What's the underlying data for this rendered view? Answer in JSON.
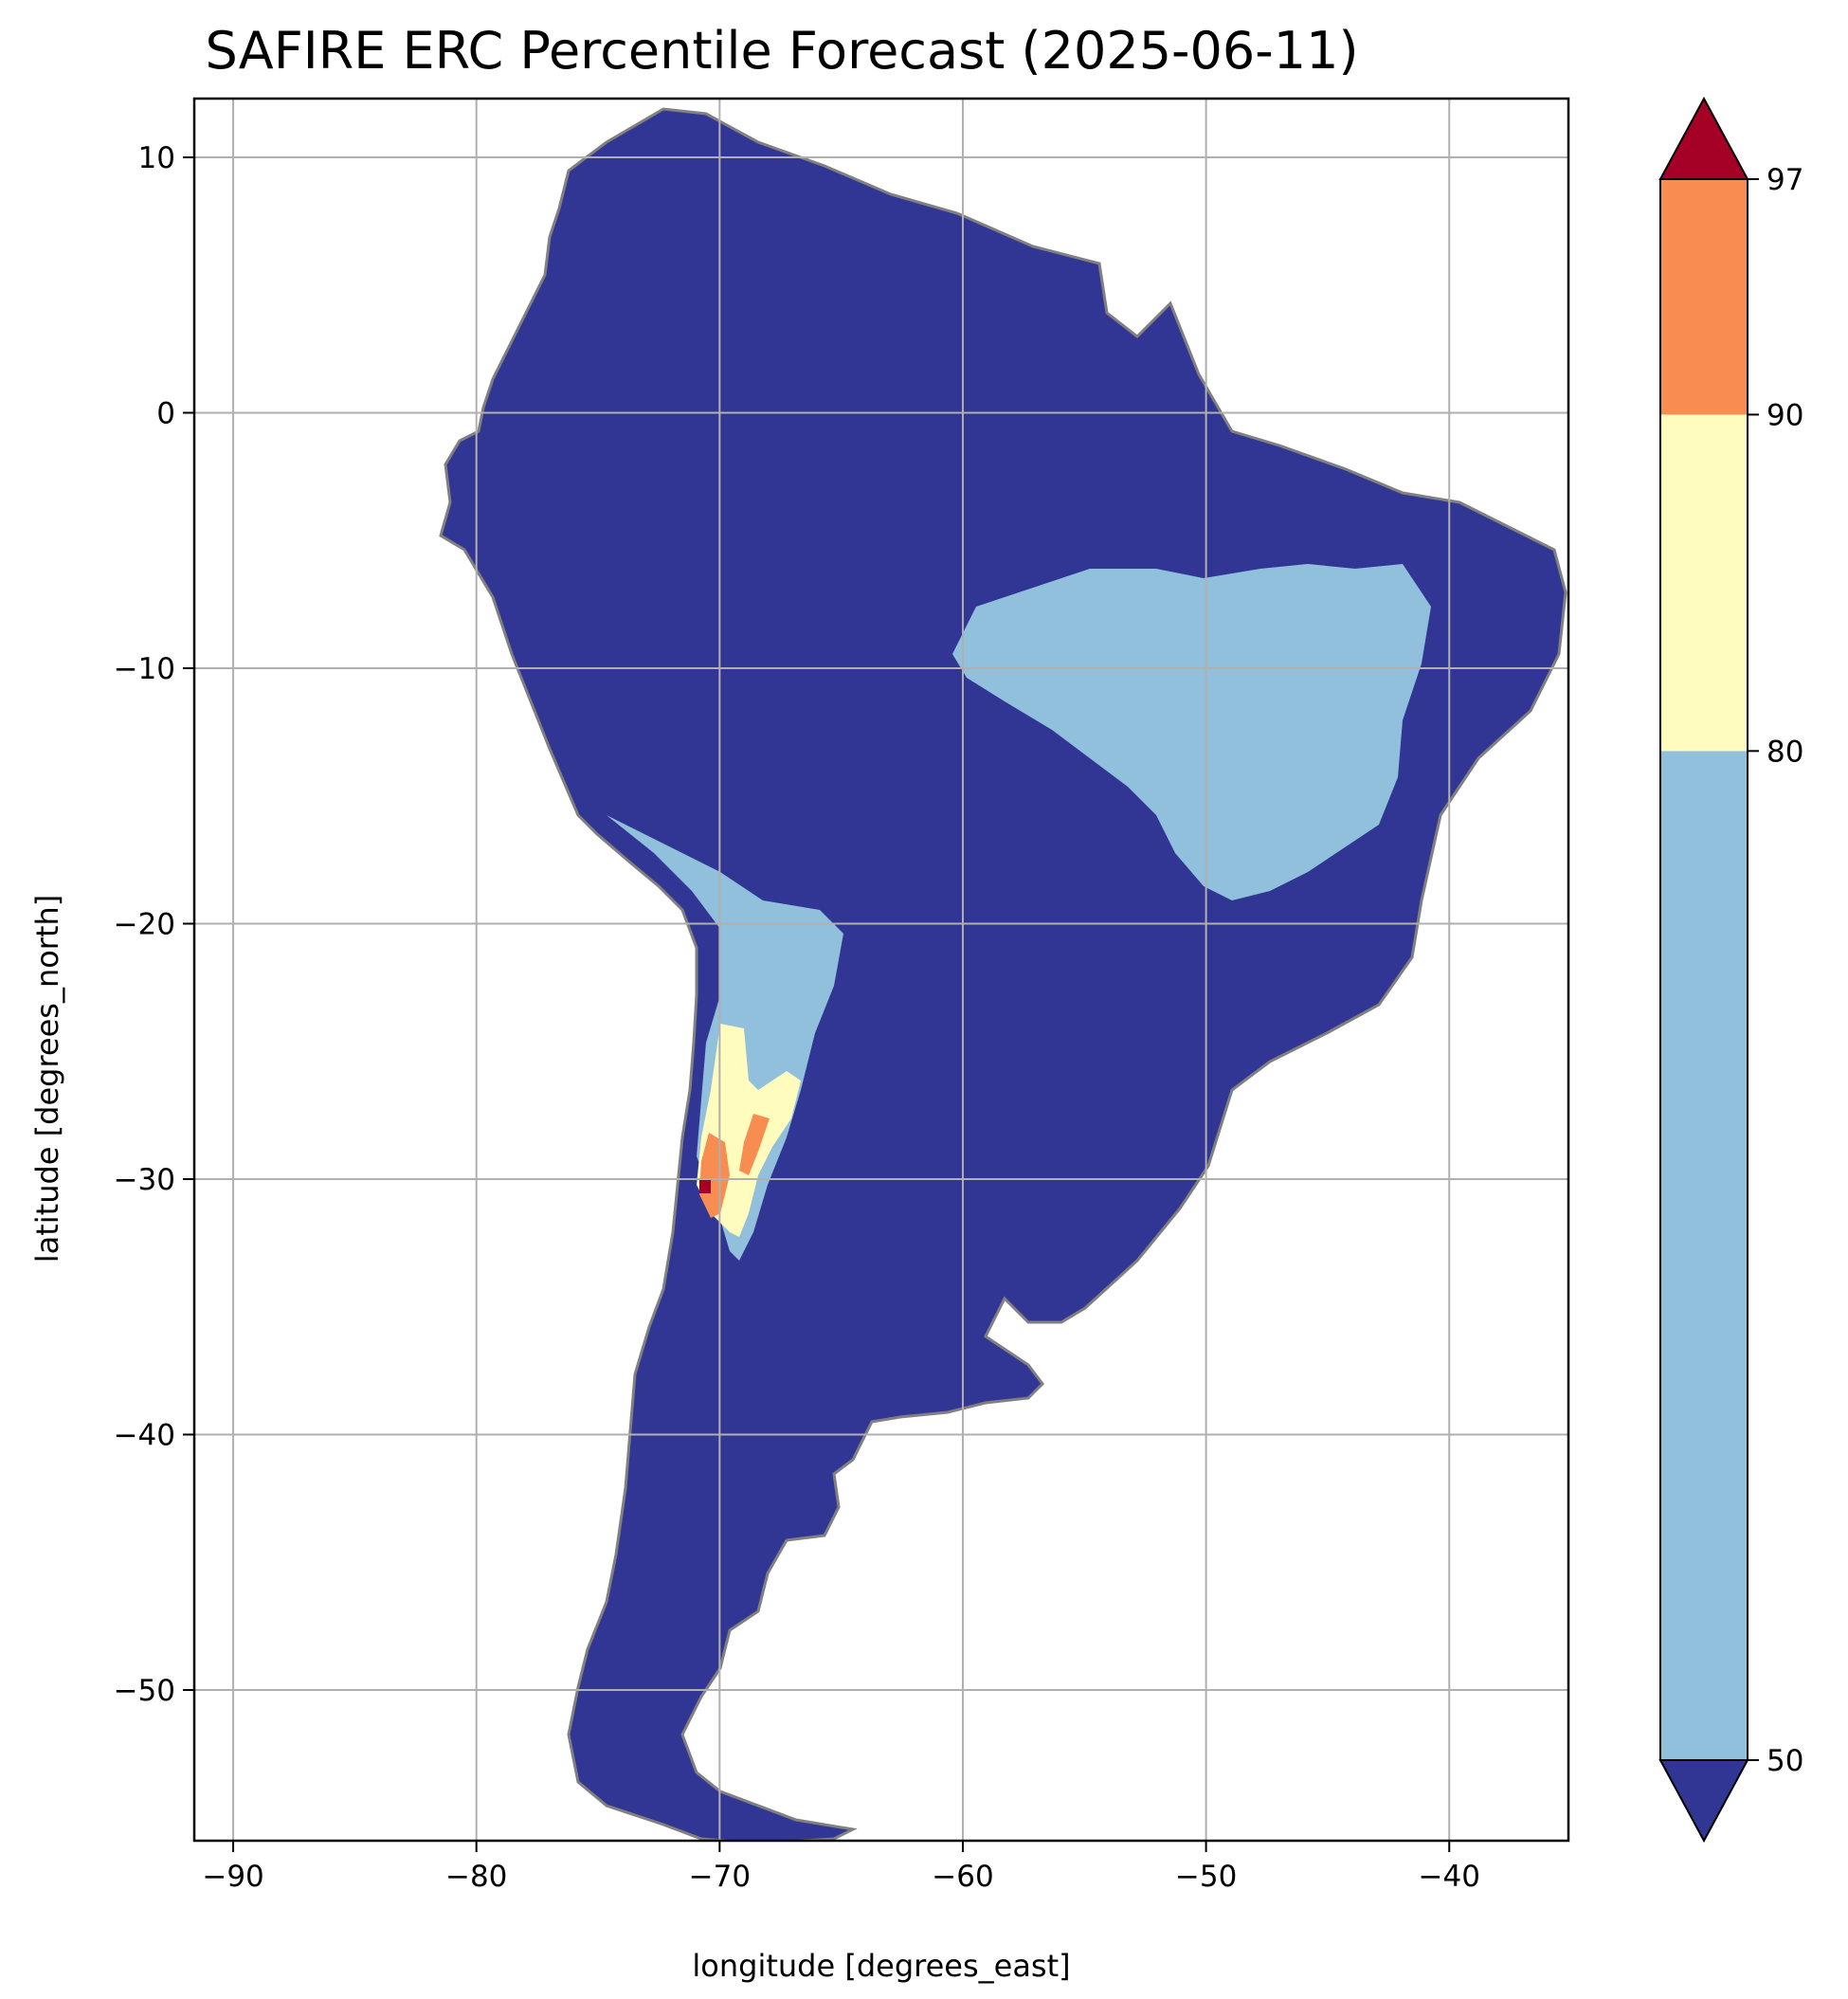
{
  "chart_data": {
    "type": "heatmap",
    "title": "SAFIRE ERC Percentile Forecast (2025-06-11)",
    "xlabel": "longitude [degrees_east]",
    "ylabel": "latitude [degrees_north]",
    "xlim": [
      -91.6,
      -35.1
    ],
    "ylim": [
      -55.9,
      12.3
    ],
    "x_ticks": [
      -90,
      -80,
      -70,
      -60,
      -50,
      -40
    ],
    "y_ticks": [
      10,
      0,
      -10,
      -20,
      -30,
      -40,
      -50
    ],
    "x_tick_labels": [
      "−90",
      "−80",
      "−70",
      "−60",
      "−50",
      "−40"
    ],
    "y_tick_labels": [
      "10",
      "0",
      "−10",
      "−20",
      "−30",
      "−40",
      "−50"
    ],
    "grid": true,
    "colorbar": {
      "boundaries": [
        50,
        80,
        90,
        97
      ],
      "tick_labels": [
        "50",
        "80",
        "90",
        "97"
      ],
      "extend": "both",
      "colors": {
        "under_50": "#313695",
        "50_80": "#91c0dc",
        "80_90": "#fffcbe",
        "90_97": "#f88d52",
        "over_97": "#a50026"
      }
    },
    "regions": [
      {
        "category": "under_50",
        "description_lonlat": "most of continent"
      },
      {
        "category": "50_80",
        "lon_range": [
          -60,
          -44
        ],
        "lat_range": [
          -19,
          -6
        ]
      },
      {
        "category": "50_80",
        "lon_range": [
          -71.5,
          -65
        ],
        "lat_range": [
          -33,
          -18
        ]
      },
      {
        "category": "80_90",
        "lon_range": [
          -71.5,
          -67
        ],
        "lat_range": [
          -32,
          -24
        ]
      },
      {
        "category": "90_97",
        "lon_range": [
          -71,
          -69
        ],
        "lat_range": [
          -31,
          -27
        ]
      },
      {
        "category": "over_97",
        "lon_range": [
          -70.8,
          -70.3
        ],
        "lat_range": [
          -30.2,
          -29.5
        ]
      }
    ],
    "border_color": "#808080",
    "gridline_color": "#b0b0b0"
  }
}
